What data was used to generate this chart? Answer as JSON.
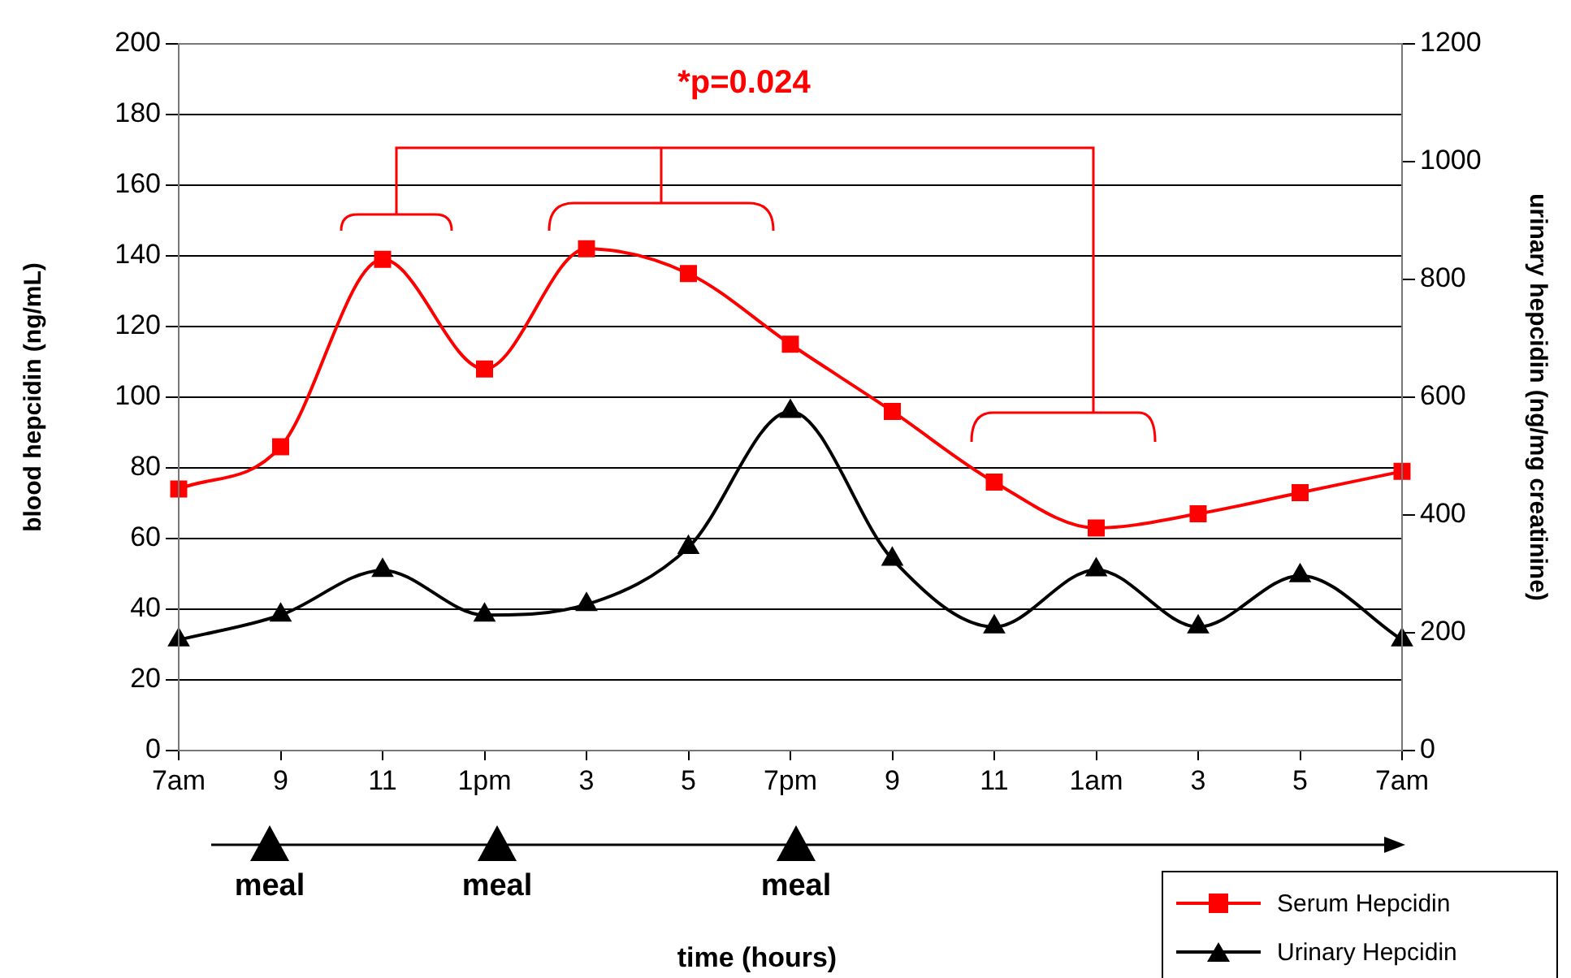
{
  "chart_data": {
    "type": "line",
    "categories": [
      "7am",
      "9",
      "11",
      "1pm",
      "3",
      "5",
      "7pm",
      "9",
      "11",
      "1am",
      "3",
      "5",
      "7am"
    ],
    "series": [
      {
        "name": "Serum Hepcidin",
        "color": "#ff0000",
        "marker": "square",
        "values": [
          74,
          86,
          139,
          108,
          142,
          135,
          115,
          96,
          76,
          63,
          67,
          73,
          79
        ]
      },
      {
        "name": "Urinary Hepcidin",
        "color": "#000000",
        "marker": "triangle",
        "axis": "y2",
        "values": [
          188,
          230,
          306,
          230,
          248,
          345,
          576,
          325,
          210,
          307,
          210,
          297,
          188
        ]
      }
    ],
    "ylabel": "blood hepcidin (ng/mL)",
    "y2label": "urinary hepcidin (ng/mg creatinine)",
    "ylim": [
      0,
      200
    ],
    "yticks": [
      0,
      20,
      40,
      60,
      80,
      100,
      120,
      140,
      160,
      180,
      200
    ],
    "y2lim": [
      0,
      1200
    ],
    "y2ticks": [
      0,
      200,
      400,
      600,
      800,
      1000,
      1200
    ],
    "grid": "y",
    "legend": "bottom right",
    "annotations": [
      "*p=0.024",
      "meal",
      "meal",
      "meal",
      "time (hours)"
    ]
  }
}
